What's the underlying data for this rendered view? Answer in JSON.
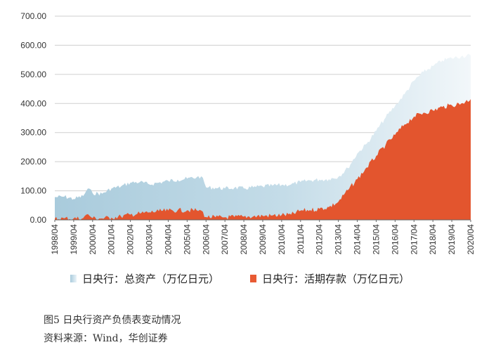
{
  "chart_data": {
    "type": "area",
    "title": "",
    "xlabel": "",
    "ylabel": "",
    "ylim": [
      0,
      700
    ],
    "yticks": [
      "0.00",
      "100.00",
      "200.00",
      "300.00",
      "400.00",
      "500.00",
      "600.00",
      "700.00"
    ],
    "xticks": [
      "1998/04",
      "1999/04",
      "2000/04",
      "2001/04",
      "2002/04",
      "2003/04",
      "2004/04",
      "2005/04",
      "2006/04",
      "2007/04",
      "2008/04",
      "2009/04",
      "2010/04",
      "2011/04",
      "2012/04",
      "2013/04",
      "2014/04",
      "2015/04",
      "2016/04",
      "2017/04",
      "2018/04",
      "2019/04",
      "2020/04"
    ],
    "grid": "horizontal",
    "legend_position": "bottom",
    "colors": {
      "total_assets": "#a9cbdc",
      "total_assets_fade": "#eef5f9",
      "current_deposits": "#e3552e"
    },
    "series": [
      {
        "name": "日央行：总资产（万亿日元）",
        "x": [
          "1998/04",
          "1998/10",
          "1999/04",
          "1999/10",
          "2000/01",
          "2000/04",
          "2000/10",
          "2001/04",
          "2001/10",
          "2002/04",
          "2002/10",
          "2003/04",
          "2003/10",
          "2004/04",
          "2004/10",
          "2005/04",
          "2005/10",
          "2006/01",
          "2006/04",
          "2006/10",
          "2007/04",
          "2007/10",
          "2008/04",
          "2008/10",
          "2009/04",
          "2009/10",
          "2010/04",
          "2010/10",
          "2011/04",
          "2011/10",
          "2012/04",
          "2012/10",
          "2013/04",
          "2013/10",
          "2014/04",
          "2014/10",
          "2015/04",
          "2015/10",
          "2016/04",
          "2016/10",
          "2017/04",
          "2017/10",
          "2018/04",
          "2018/10",
          "2019/04",
          "2019/10",
          "2020/04"
        ],
        "values": [
          78,
          80,
          72,
          82,
          108,
          92,
          90,
          108,
          115,
          128,
          130,
          122,
          128,
          134,
          138,
          142,
          146,
          150,
          112,
          110,
          108,
          110,
          108,
          112,
          115,
          118,
          120,
          122,
          130,
          136,
          138,
          140,
          148,
          178,
          228,
          262,
          306,
          352,
          392,
          432,
          478,
          508,
          528,
          548,
          556,
          562,
          565
        ]
      },
      {
        "name": "日央行：活期存款（万亿日元）",
        "x": [
          "1998/04",
          "1998/10",
          "1999/04",
          "1999/10",
          "2000/01",
          "2000/04",
          "2000/10",
          "2001/04",
          "2001/10",
          "2002/04",
          "2002/10",
          "2003/04",
          "2003/10",
          "2004/04",
          "2004/10",
          "2005/04",
          "2005/10",
          "2006/01",
          "2006/04",
          "2006/10",
          "2007/04",
          "2007/10",
          "2008/04",
          "2008/10",
          "2009/04",
          "2009/10",
          "2010/04",
          "2010/10",
          "2011/04",
          "2011/10",
          "2012/04",
          "2012/10",
          "2013/04",
          "2013/10",
          "2014/04",
          "2014/10",
          "2015/04",
          "2015/10",
          "2016/04",
          "2016/10",
          "2017/04",
          "2017/10",
          "2018/04",
          "2018/10",
          "2019/04",
          "2019/10",
          "2020/04"
        ],
        "values": [
          4,
          5,
          5,
          6,
          20,
          6,
          5,
          8,
          12,
          18,
          22,
          26,
          30,
          32,
          33,
          33,
          33,
          32,
          10,
          9,
          9,
          10,
          11,
          12,
          14,
          15,
          17,
          18,
          32,
          34,
          38,
          44,
          62,
          102,
          140,
          180,
          220,
          258,
          292,
          328,
          355,
          368,
          376,
          388,
          394,
          400,
          415
        ]
      }
    ]
  },
  "figure": {
    "title": "图5  日央行资产负债表变动情况",
    "source": "资料来源：Wind，华创证券"
  }
}
